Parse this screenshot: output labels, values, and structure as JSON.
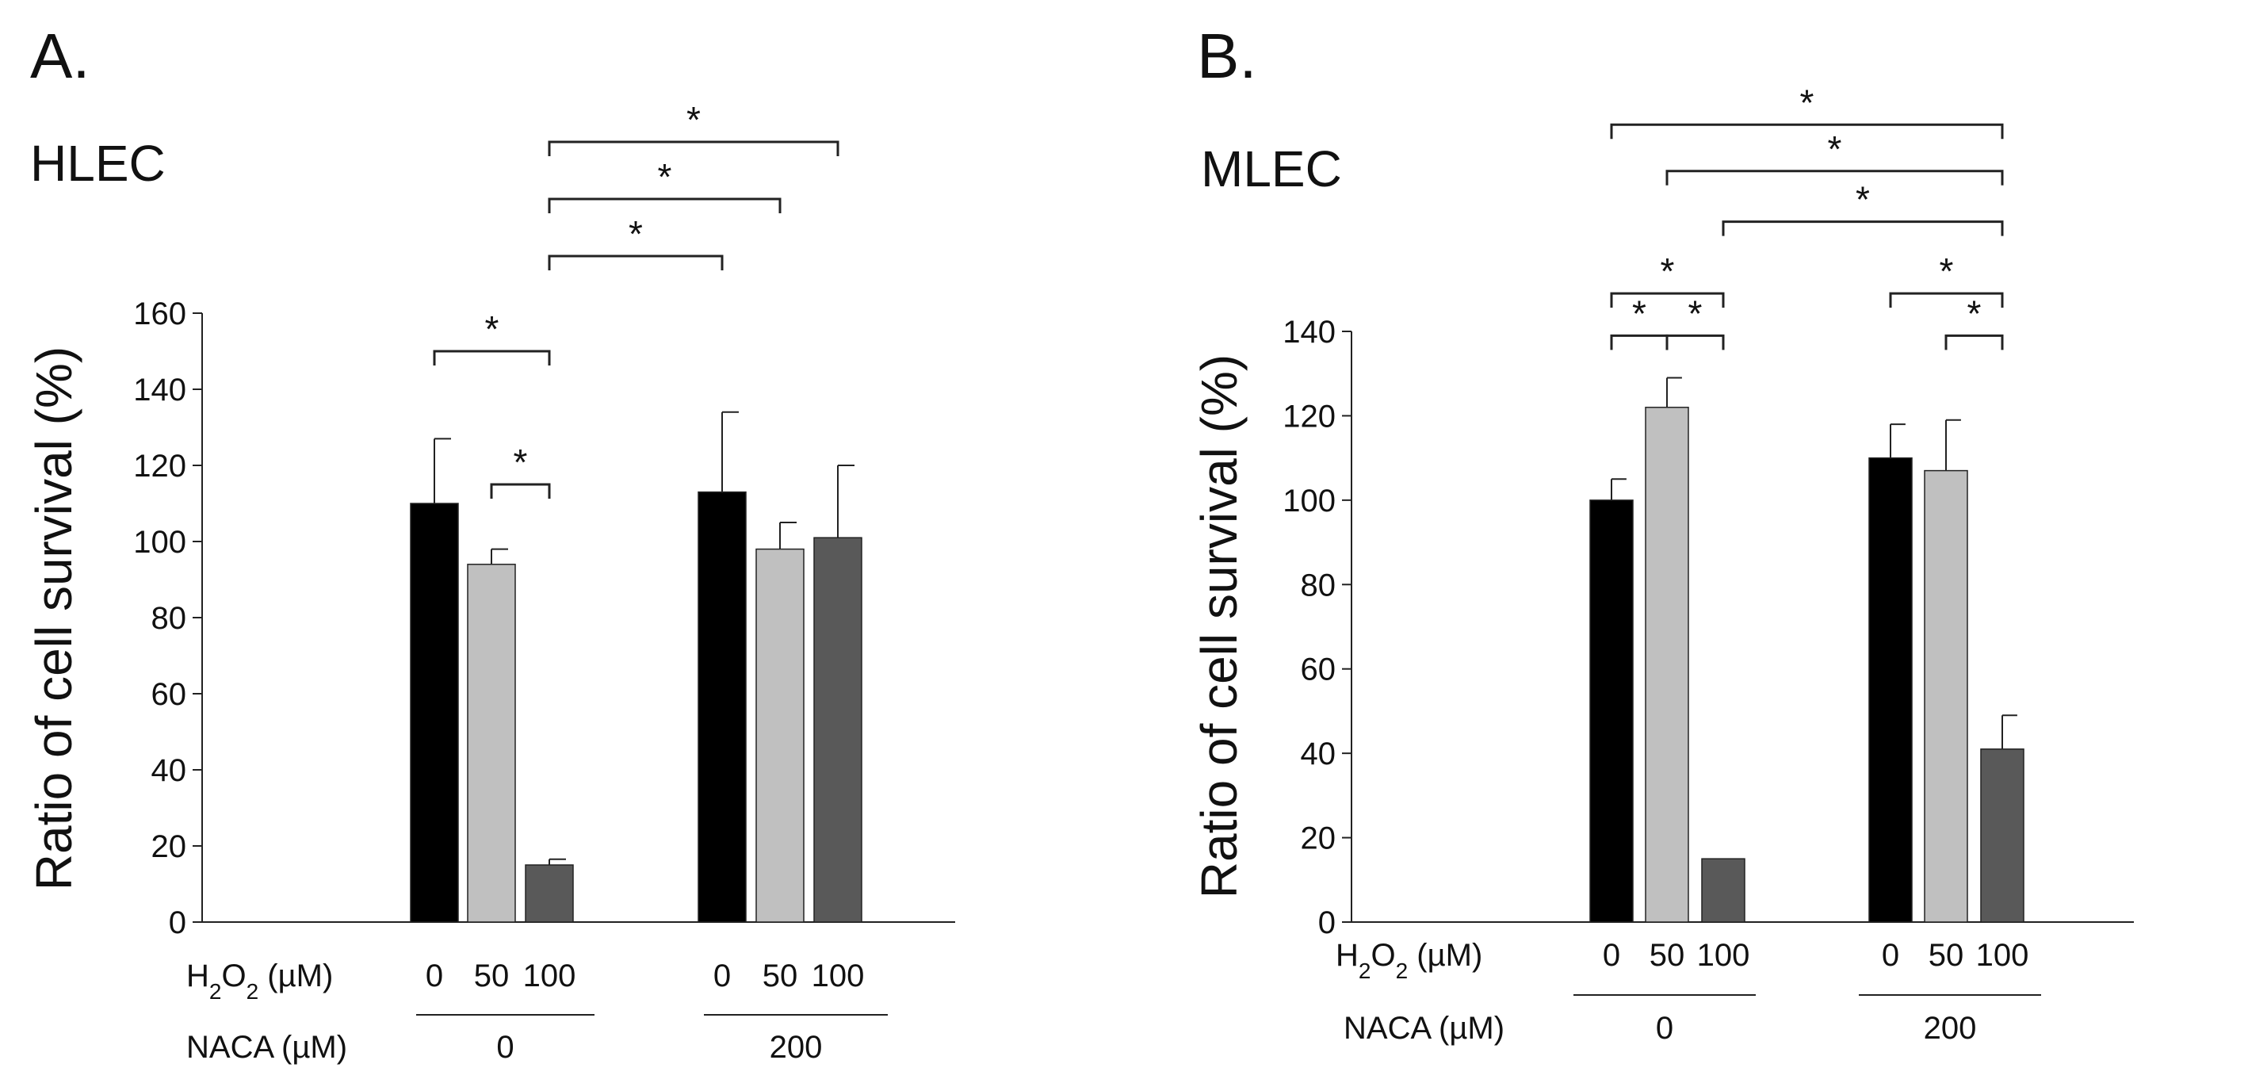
{
  "chart_data": [
    {
      "type": "bar",
      "panel": "A.",
      "cell": "HLEC",
      "ylabel": "Ratio of cell survival (%)",
      "ylim": [
        0,
        160
      ],
      "yticks": [
        "0",
        "20",
        "40",
        "60",
        "80",
        "100",
        "120",
        "140",
        "160"
      ],
      "x_row1_label": {
        "main": "H",
        "sub": "2",
        "mid": "O",
        "sub2": "2",
        "unit": "(µM)"
      },
      "x_row2_label": "NACA (µM)",
      "groups": [
        {
          "naca": "0",
          "bars": [
            {
              "h2o2": "0",
              "value": 110,
              "error": 17,
              "color": "#000000"
            },
            {
              "h2o2": "50",
              "value": 94,
              "error": 4,
              "color": "#c0c0c0"
            },
            {
              "h2o2": "100",
              "value": 15,
              "error": 1.5,
              "color": "#595959"
            }
          ]
        },
        {
          "naca": "200",
          "bars": [
            {
              "h2o2": "0",
              "value": 113,
              "error": 21,
              "color": "#000000"
            },
            {
              "h2o2": "50",
              "value": 98,
              "error": 7,
              "color": "#c0c0c0"
            },
            {
              "h2o2": "100",
              "value": 101,
              "error": 19,
              "color": "#595959"
            }
          ]
        }
      ],
      "significance": [
        {
          "from": [
            0,
            0
          ],
          "to": [
            0,
            2
          ],
          "level": 150,
          "label": "*"
        },
        {
          "from": [
            0,
            1
          ],
          "to": [
            0,
            2
          ],
          "level": 115,
          "label": "*"
        },
        {
          "from": [
            0,
            2
          ],
          "to": [
            1,
            0
          ],
          "level": 175,
          "label": "*"
        },
        {
          "from": [
            0,
            2
          ],
          "to": [
            1,
            1
          ],
          "level": 190,
          "label": "*"
        },
        {
          "from": [
            0,
            2
          ],
          "to": [
            1,
            2
          ],
          "level": 205,
          "label": "*"
        }
      ]
    },
    {
      "type": "bar",
      "panel": "B.",
      "cell": "MLEC",
      "ylabel": "Ratio of cell survival (%)",
      "ylim": [
        0,
        140
      ],
      "yticks": [
        "0",
        "20",
        "40",
        "60",
        "80",
        "100",
        "120",
        "140"
      ],
      "x_row1_label": {
        "main": "H",
        "sub": "2",
        "mid": "O",
        "sub2": "2",
        "unit": "(µM)"
      },
      "x_row2_label": "NACA (µM)",
      "groups": [
        {
          "naca": "0",
          "bars": [
            {
              "h2o2": "0",
              "value": 100,
              "error": 5,
              "color": "#000000"
            },
            {
              "h2o2": "50",
              "value": 122,
              "error": 7,
              "color": "#c0c0c0"
            },
            {
              "h2o2": "100",
              "value": 15,
              "error": 0,
              "color": "#595959"
            }
          ]
        },
        {
          "naca": "200",
          "bars": [
            {
              "h2o2": "0",
              "value": 110,
              "error": 8,
              "color": "#000000"
            },
            {
              "h2o2": "50",
              "value": 107,
              "error": 12,
              "color": "#c0c0c0"
            },
            {
              "h2o2": "100",
              "value": 41,
              "error": 8,
              "color": "#595959"
            }
          ]
        }
      ],
      "significance": [
        {
          "from": [
            0,
            0
          ],
          "to": [
            0,
            1
          ],
          "level": 139,
          "label": "*"
        },
        {
          "from": [
            0,
            1
          ],
          "to": [
            0,
            2
          ],
          "level": 139,
          "label": "*"
        },
        {
          "from": [
            0,
            0
          ],
          "to": [
            0,
            2
          ],
          "level": 149,
          "label": "*"
        },
        {
          "from": [
            1,
            1
          ],
          "to": [
            1,
            2
          ],
          "level": 139,
          "label": "*"
        },
        {
          "from": [
            1,
            0
          ],
          "to": [
            1,
            2
          ],
          "level": 149,
          "label": "*"
        },
        {
          "from": [
            0,
            2
          ],
          "to": [
            1,
            2
          ],
          "level": 166,
          "label": "*"
        },
        {
          "from": [
            0,
            1
          ],
          "to": [
            1,
            2
          ],
          "level": 178,
          "label": "*"
        },
        {
          "from": [
            0,
            0
          ],
          "to": [
            1,
            2
          ],
          "level": 189,
          "label": "*"
        }
      ]
    }
  ]
}
